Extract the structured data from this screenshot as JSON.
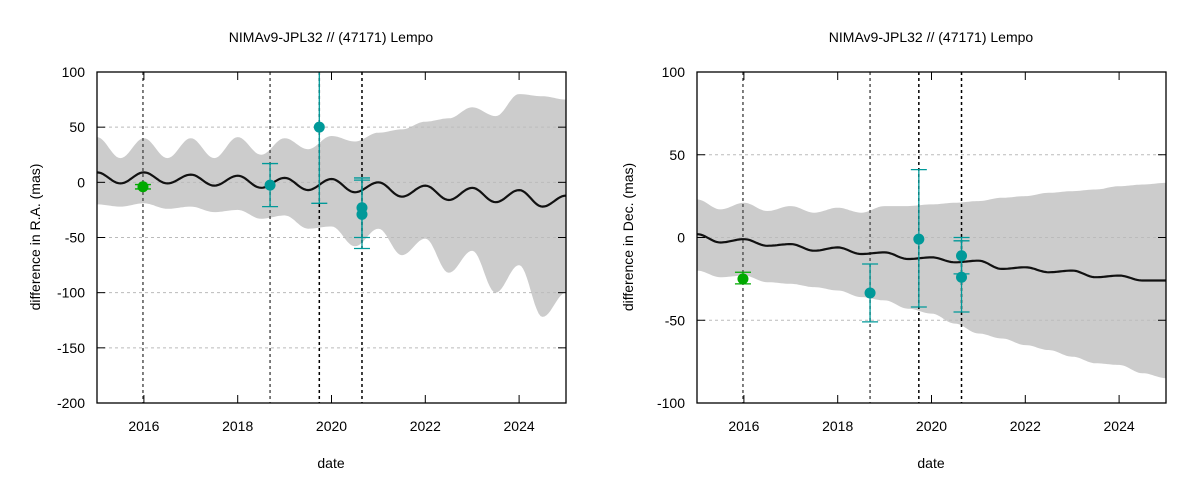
{
  "chart_data": [
    {
      "type": "line",
      "title": "NIMAv9-JPL32 // (47171) Lempo",
      "xlabel": "date",
      "ylabel": "difference in R.A. (mas)",
      "xlim": [
        2015,
        2025
      ],
      "ylim": [
        -200,
        100
      ],
      "xticks": [
        2016,
        2018,
        2020,
        2022,
        2024
      ],
      "yticks": [
        100,
        50,
        0,
        -50,
        -100,
        -150,
        -200
      ],
      "grid": "horizontal dotted",
      "vertical_markers": [
        2015.98,
        2018.69,
        2019.74,
        2020.65
      ],
      "model": {
        "x": [
          2015,
          2015.5,
          2016,
          2016.5,
          2017,
          2017.5,
          2018,
          2018.5,
          2019,
          2019.5,
          2020,
          2020.5,
          2021,
          2021.5,
          2022,
          2022.5,
          2023,
          2023.5,
          2024,
          2024.5,
          2025
        ],
        "center": [
          9,
          -1,
          9,
          -1,
          7,
          -3,
          6,
          -5,
          4,
          -7,
          3,
          -9,
          0,
          -13,
          -3,
          -16,
          -5,
          -18,
          -7,
          -22,
          -12
        ],
        "upper": [
          41,
          22,
          40,
          22,
          40,
          22,
          41,
          25,
          40,
          30,
          42,
          37,
          45,
          48,
          55,
          58,
          68,
          60,
          80,
          78,
          75
        ],
        "lower": [
          -20,
          -22,
          -19,
          -24,
          -22,
          -27,
          -25,
          -33,
          -30,
          -42,
          -40,
          -58,
          -42,
          -66,
          -51,
          -82,
          -62,
          -100,
          -75,
          -122,
          -100
        ]
      },
      "observations": [
        {
          "x": 2015.98,
          "y": -4,
          "err_low": -6,
          "err_high": -2,
          "color": "#00aa00"
        },
        {
          "x": 2018.69,
          "y": -2.5,
          "err_low": -22,
          "err_high": 17,
          "color": "#009999"
        },
        {
          "x": 2019.74,
          "y": 50,
          "err_low": -19,
          "err_high": 120,
          "color": "#009999"
        },
        {
          "x": 2020.65,
          "y": -23,
          "err_low": -50,
          "err_high": 4,
          "color": "#009999"
        },
        {
          "x": 2020.65,
          "y": -29,
          "err_low": -60,
          "err_high": 2,
          "color": "#009999"
        }
      ]
    },
    {
      "type": "line",
      "title": "NIMAv9-JPL32 // (47171) Lempo",
      "xlabel": "date",
      "ylabel": "difference in Dec. (mas)",
      "xlim": [
        2015,
        2025
      ],
      "ylim": [
        -100,
        100
      ],
      "xticks": [
        2016,
        2018,
        2020,
        2022,
        2024
      ],
      "yticks": [
        100,
        50,
        0,
        -50,
        -100
      ],
      "grid": "horizontal dotted",
      "vertical_markers": [
        2015.98,
        2018.69,
        2019.73,
        2020.64
      ],
      "model": {
        "x": [
          2015,
          2015.5,
          2016,
          2016.5,
          2017,
          2017.5,
          2018,
          2018.5,
          2019,
          2019.5,
          2020,
          2020.5,
          2021,
          2021.5,
          2022,
          2022.5,
          2023,
          2023.5,
          2024,
          2024.5,
          2025
        ],
        "center": [
          2,
          -3,
          -1,
          -5,
          -4,
          -8,
          -6,
          -10,
          -9,
          -13,
          -12,
          -15,
          -14,
          -19,
          -18,
          -21,
          -20,
          -24,
          -23,
          -26,
          -26
        ],
        "upper": [
          23,
          17,
          21,
          16,
          19,
          15,
          18,
          15,
          19,
          19,
          20,
          21,
          22,
          24,
          25,
          27,
          28,
          29,
          31,
          32,
          33
        ],
        "lower": [
          -20,
          -24,
          -23,
          -27,
          -28,
          -30,
          -32,
          -36,
          -38,
          -43,
          -46,
          -52,
          -58,
          -61,
          -65,
          -68,
          -72,
          -76,
          -77,
          -82,
          -85
        ]
      },
      "observations": [
        {
          "x": 2015.98,
          "y": -25,
          "err_low": -28,
          "err_high": -21,
          "color": "#00aa00"
        },
        {
          "x": 2018.69,
          "y": -33.5,
          "err_low": -51,
          "err_high": -16,
          "color": "#009999"
        },
        {
          "x": 2019.73,
          "y": -1,
          "err_low": -42,
          "err_high": 41,
          "color": "#009999"
        },
        {
          "x": 2020.64,
          "y": -11,
          "err_low": -22,
          "err_high": 0,
          "color": "#009999"
        },
        {
          "x": 2020.64,
          "y": -24,
          "err_low": -45,
          "err_high": -2,
          "color": "#009999"
        }
      ]
    }
  ],
  "colors": {
    "band": "#cccccc",
    "model": "#111111",
    "grid": "#bbbbbb"
  }
}
